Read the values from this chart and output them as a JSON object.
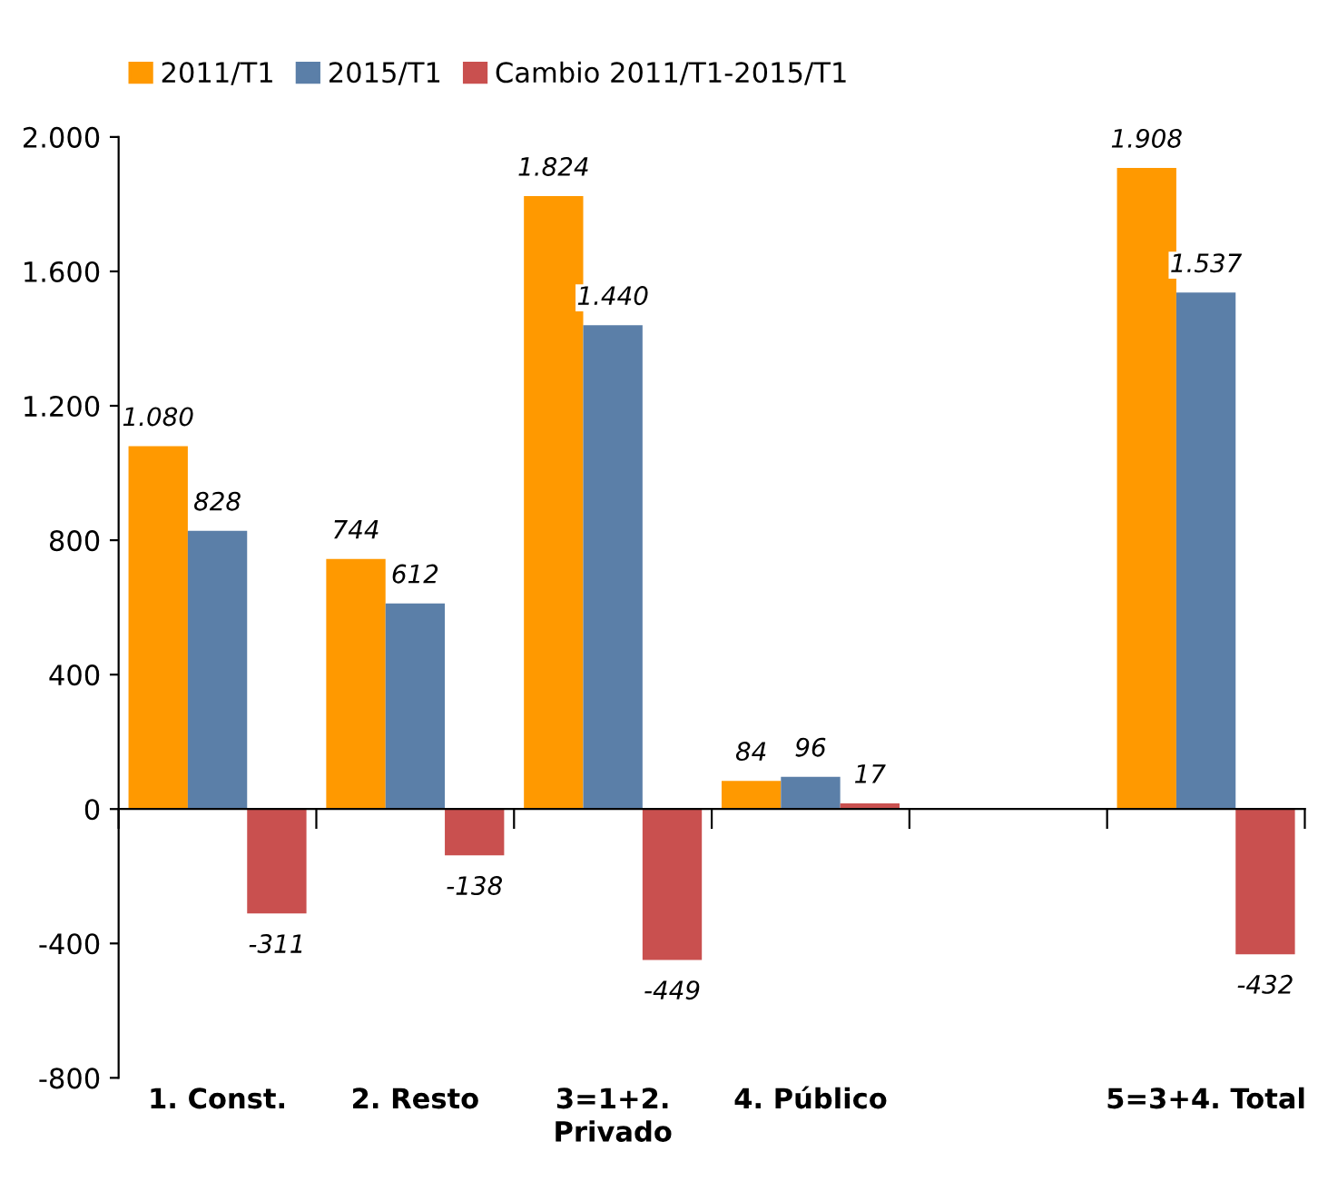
{
  "chart_data": {
    "type": "bar",
    "categories": [
      "1. Const.",
      "2. Resto",
      "3=1+2.\nPrivado",
      "4. Público",
      null,
      "5=3+4. Total"
    ],
    "series": [
      {
        "name": "2011/T1",
        "color": "#ff9900",
        "values": [
          1080,
          744,
          1824,
          84,
          null,
          1908
        ],
        "value_labels": [
          "1.080",
          "744",
          "1.824",
          "84",
          null,
          "1.908"
        ]
      },
      {
        "name": "2015/T1",
        "color": "#5b7fa8",
        "values": [
          828,
          612,
          1440,
          96,
          null,
          1537
        ],
        "value_labels": [
          "828",
          "612",
          "1.440",
          "96",
          null,
          "1.537"
        ]
      },
      {
        "name": "Cambio 2011/T1-2015/T1",
        "color": "#c9504f",
        "values": [
          -311,
          -138,
          -449,
          17,
          null,
          -432
        ],
        "value_labels": [
          "-311",
          "-138",
          "-449",
          "17",
          null,
          "-432"
        ]
      }
    ],
    "ylim": [
      -800,
      2000
    ],
    "yticks": [
      {
        "value": -800,
        "label": "-800"
      },
      {
        "value": -400,
        "label": "-400"
      },
      0,
      400,
      800,
      {
        "value": 1200,
        "label": "1.200"
      },
      {
        "value": 1600,
        "label": "1.600"
      },
      {
        "value": 2000,
        "label": "2.000"
      }
    ],
    "legend": "top left"
  }
}
